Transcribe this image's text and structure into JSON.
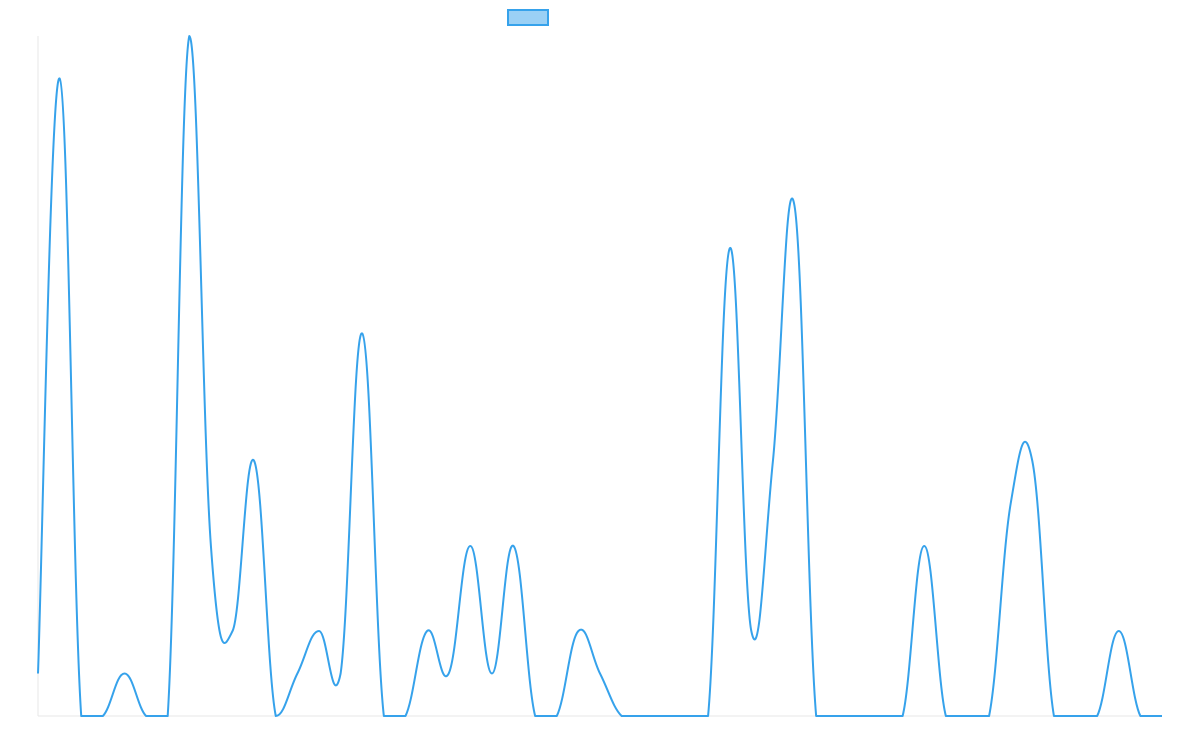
{
  "chart_data": {
    "type": "line",
    "x": [
      0,
      1,
      2,
      3,
      4,
      5,
      6,
      7,
      8,
      9,
      10,
      11,
      12,
      13,
      14,
      15,
      16,
      17,
      18,
      19,
      20,
      21,
      22,
      23,
      24,
      25,
      26,
      27,
      28,
      29,
      30,
      31,
      32,
      33,
      34,
      35,
      36,
      37,
      38,
      39,
      40,
      41,
      42,
      43,
      44,
      45,
      46,
      47,
      48,
      49,
      50,
      51,
      52
    ],
    "series": [
      {
        "values": [
          1,
          15,
          0,
          0,
          1,
          0,
          0,
          16,
          4,
          2,
          6,
          0,
          1,
          2,
          1,
          9,
          0,
          0,
          2,
          1,
          4,
          1,
          4,
          0,
          0,
          2,
          1,
          0,
          0,
          0,
          0,
          0,
          11,
          2,
          6,
          12,
          0,
          0,
          0,
          0,
          0,
          4,
          0,
          0,
          0,
          5,
          6,
          0,
          0,
          0,
          2,
          0,
          0
        ],
        "color": "#36a2eb",
        "fill": "#9ad0f5"
      }
    ],
    "ylim": [
      0,
      16
    ],
    "grid": false,
    "legend": "top-center"
  }
}
